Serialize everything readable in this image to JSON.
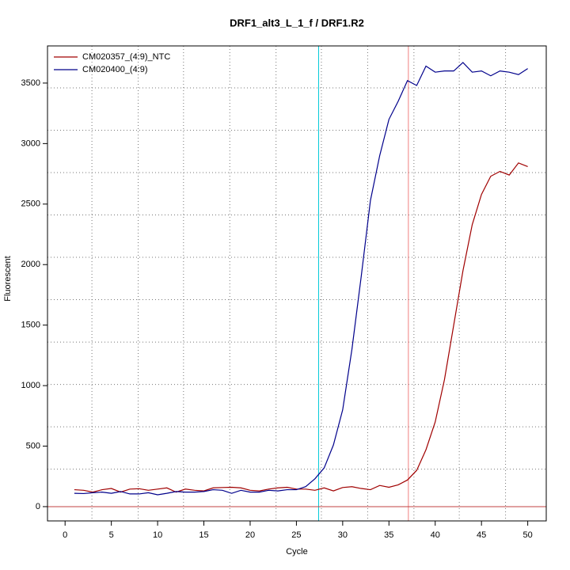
{
  "chart_data": {
    "type": "line",
    "title": "DRF1_alt3_L_1_f / DRF1.R2",
    "xlabel": "Cycle",
    "ylabel": "Fluorescent",
    "x": [
      1,
      2,
      3,
      4,
      5,
      6,
      7,
      8,
      9,
      10,
      11,
      12,
      13,
      14,
      15,
      16,
      17,
      18,
      19,
      20,
      21,
      22,
      23,
      24,
      25,
      26,
      27,
      28,
      29,
      30,
      31,
      32,
      33,
      34,
      35,
      36,
      37,
      38,
      39,
      40,
      41,
      42,
      43,
      44,
      45,
      46,
      47,
      48,
      49,
      50
    ],
    "series": [
      {
        "name": "CM020357_(4:9)_NTC",
        "color": "#a00000",
        "values": [
          140,
          135,
          120,
          140,
          150,
          120,
          145,
          148,
          135,
          145,
          155,
          120,
          145,
          135,
          130,
          155,
          158,
          160,
          155,
          135,
          130,
          145,
          155,
          160,
          145,
          145,
          135,
          155,
          130,
          158,
          165,
          150,
          140,
          175,
          160,
          180,
          220,
          300,
          470,
          700,
          1050,
          1500,
          1950,
          2330,
          2580,
          2730,
          2770,
          2740,
          2840,
          2810
        ]
      },
      {
        "name": "CM020400_(4:9)",
        "color": "#00008b",
        "values": [
          110,
          108,
          115,
          120,
          110,
          125,
          105,
          105,
          115,
          98,
          110,
          125,
          120,
          120,
          125,
          140,
          135,
          110,
          135,
          120,
          120,
          135,
          130,
          140,
          140,
          165,
          230,
          320,
          510,
          800,
          1300,
          1900,
          2530,
          2900,
          3200,
          3350,
          3520,
          3480,
          3640,
          3590,
          3600,
          3600,
          3670,
          3590,
          3600,
          3560,
          3600,
          3590,
          3570,
          3620
        ]
      }
    ],
    "xlim": [
      -1.9,
      52
    ],
    "ylim": [
      -118,
      3807
    ],
    "xticks": [
      0,
      5,
      10,
      15,
      20,
      25,
      30,
      35,
      40,
      45,
      50
    ],
    "yticks": [
      0,
      500,
      1000,
      1500,
      2000,
      2500,
      3000,
      3500
    ],
    "xgrid": [
      2.9,
      7.9,
      12.8,
      17.8,
      22.8,
      27.7,
      32.7,
      37.7,
      42.6,
      47.6
    ],
    "ygrid": [
      310,
      660,
      1010,
      1360,
      1710,
      2060,
      2410,
      2760,
      3110,
      3460
    ],
    "vlines": [
      {
        "value": 27.4,
        "color": "#00c8d8"
      },
      {
        "value": 37.1,
        "color": "#f08080"
      }
    ],
    "hline": {
      "value": 0,
      "color": "#c04040"
    },
    "legend": "top-left"
  }
}
